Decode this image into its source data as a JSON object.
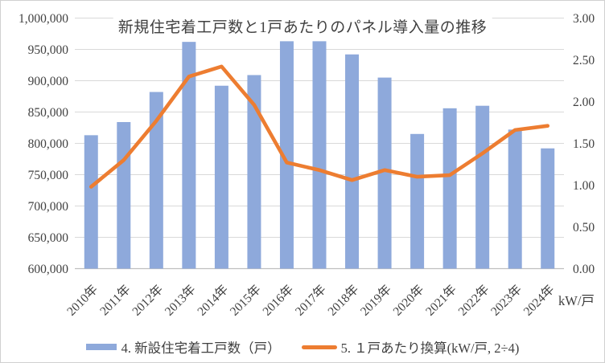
{
  "window": {
    "background": "#ffffff",
    "frame_border_color": "#d0d0d0"
  },
  "chart_data": {
    "type": "combo",
    "title": "新規住宅着工戸数と1戸あたりのパネル導入量の推移",
    "categories": [
      "2010年",
      "2011年",
      "2012年",
      "2013年",
      "2014年",
      "2015年",
      "2016年",
      "2017年",
      "2018年",
      "2019年",
      "2020年",
      "2021年",
      "2022年",
      "2023年",
      "2024年"
    ],
    "series": [
      {
        "name": "4. 新設住宅着工戸数（戸）",
        "type": "bar",
        "axis": "left",
        "color": "#8EA9DB",
        "values": [
          813000,
          834000,
          882000,
          962000,
          892000,
          909000,
          963000,
          963000,
          942000,
          905000,
          815000,
          856000,
          860000,
          822000,
          792000
        ]
      },
      {
        "name": "5. １戸あたり換算(kW/戸, 2÷4)",
        "type": "line",
        "axis": "right",
        "color": "#ED7D31",
        "values": [
          0.98,
          1.3,
          1.77,
          2.3,
          2.42,
          1.96,
          1.27,
          1.18,
          1.06,
          1.18,
          1.1,
          1.12,
          1.38,
          1.66,
          1.71
        ]
      }
    ],
    "left_axis": {
      "min": 600000,
      "max": 1000000,
      "step": 50000,
      "tick_labels": [
        "600,000",
        "650,000",
        "700,000",
        "750,000",
        "800,000",
        "850,000",
        "900,000",
        "950,000",
        "1,000,000"
      ]
    },
    "right_axis": {
      "min": 0,
      "max": 3,
      "step": 0.5,
      "tick_labels": [
        "0.00",
        "0.50",
        "1.00",
        "1.50",
        "2.00",
        "2.50",
        "3.00"
      ],
      "unit_label": "kW/戸"
    },
    "gridlines": {
      "on": true,
      "color": "#D9D9D9",
      "axis_line_color": "#BFBFBF"
    },
    "legend": {
      "position": "bottom"
    },
    "text_color": "#404040"
  }
}
